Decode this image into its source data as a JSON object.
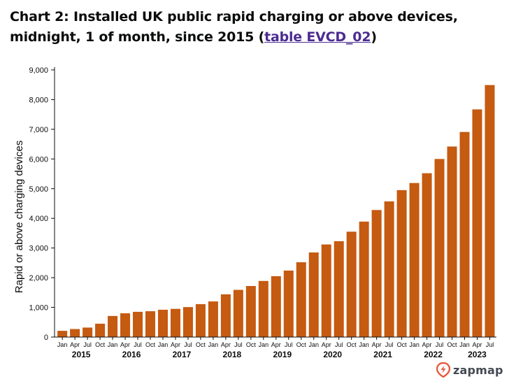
{
  "header": {
    "title_prefix": "Chart 2: Installed UK public rapid charging or above devices, midnight, 1 of month, since 2015 (",
    "link_text": "table EVCD_02",
    "title_suffix": ")"
  },
  "logo": {
    "text": "zapmap",
    "icon": "zapmap-bolt-icon",
    "color": "#e9573f"
  },
  "colors": {
    "bar": "#c55a11",
    "axis": "#0b0c0c",
    "link": "#4c2c92"
  },
  "chart_data": {
    "type": "bar",
    "title": "Chart 2: Installed UK public rapid charging or above devices, midnight, 1 of month, since 2015 (table EVCD_02)",
    "xlabel": "",
    "ylabel": "Rapid or above charging devices",
    "ylim": [
      0,
      9000
    ],
    "yticks": [
      0,
      1000,
      2000,
      3000,
      4000,
      5000,
      6000,
      7000,
      8000,
      9000
    ],
    "ytick_labels": [
      "0",
      "1,000",
      "2,000",
      "3,000",
      "4,000",
      "5,000",
      "6,000",
      "7,000",
      "8,000",
      "9,000"
    ],
    "grid": false,
    "categories": [
      "Jan 2015",
      "Apr 2015",
      "Jul 2015",
      "Oct 2015",
      "Jan 2016",
      "Apr 2016",
      "Jul 2016",
      "Oct 2016",
      "Jan 2017",
      "Apr 2017",
      "Jul 2017",
      "Oct 2017",
      "Jan 2018",
      "Apr 2018",
      "Jul 2018",
      "Oct 2018",
      "Jan 2019",
      "Apr 2019",
      "Jul 2019",
      "Oct 2019",
      "Jan 2020",
      "Apr 2020",
      "Jul 2020",
      "Oct 2020",
      "Jan 2021",
      "Apr 2021",
      "Jul 2021",
      "Oct 2021",
      "Jan 2022",
      "Apr 2022",
      "Jul 2022",
      "Oct 2022",
      "Jan 2023",
      "Apr 2023",
      "Jul 2023"
    ],
    "month_labels": [
      "Jan",
      "Apr",
      "Jul",
      "Oct",
      "Jan",
      "Apr",
      "Jul",
      "Oct",
      "Jan",
      "Apr",
      "Jul",
      "Oct",
      "Jan",
      "Apr",
      "Jul",
      "Oct",
      "Jan",
      "Apr",
      "Jul",
      "Oct",
      "Jan",
      "Apr",
      "Jul",
      "Oct",
      "Jan",
      "Apr",
      "Jul",
      "Oct",
      "Jan",
      "Apr",
      "Jul",
      "Oct",
      "Jan",
      "Apr",
      "Jul"
    ],
    "years": [
      "2015",
      "2016",
      "2017",
      "2018",
      "2019",
      "2020",
      "2021",
      "2022",
      "2023"
    ],
    "values": [
      210,
      270,
      320,
      450,
      710,
      800,
      850,
      870,
      920,
      950,
      1010,
      1110,
      1200,
      1440,
      1590,
      1720,
      1890,
      2050,
      2240,
      2520,
      2850,
      3120,
      3230,
      3550,
      3890,
      4280,
      4570,
      4950,
      5190,
      5520,
      6000,
      6420,
      6910,
      7670,
      8490
    ]
  }
}
